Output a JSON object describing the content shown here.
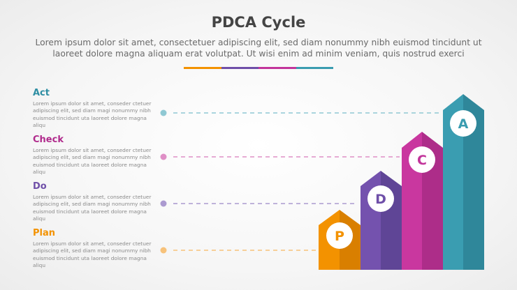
{
  "header": {
    "title": "PDCA Cycle",
    "subtitle": "Lorem ipsum dolor sit amet, consectetuer adipiscing elit, sed diam nonummy nibh euismod tincidunt ut laoreet dolore magna aliquam erat volutpat. Ut wisi enim ad minim veniam, quis nostrud exerci"
  },
  "colors": {
    "plan": "#f39200",
    "do": "#6f4fa8",
    "check": "#c2359b",
    "act": "#3a9cb0"
  },
  "steps": [
    {
      "label": "Act",
      "letter": "A",
      "description": "Lorem ipsum dolor sit amet, conseder ctetuer adipiscing elit, sed diam magi nonummy nibh euismod tincidunt uta laoreet dolore magna aliqu"
    },
    {
      "label": "Check",
      "letter": "C",
      "description": "Lorem ipsum dolor sit amet, conseder ctetuer adipiscing elit, sed diam magi nonummy nibh euismod tincidunt uta laoreet dolore magna aliqu"
    },
    {
      "label": "Do",
      "letter": "D",
      "description": "Lorem ipsum dolor sit amet, conseder ctetuer adipiscing elit, sed diam magi nonummy nibh euismod tincidunt uta laoreet dolore magna aliqu"
    },
    {
      "label": "Plan",
      "letter": "P",
      "description": "Lorem ipsum dolor sit amet, conseder ctetuer adipiscing elit, sed diam magi nonummy nibh euismod tincidunt uta laoreet dolore magna aliqu"
    }
  ]
}
